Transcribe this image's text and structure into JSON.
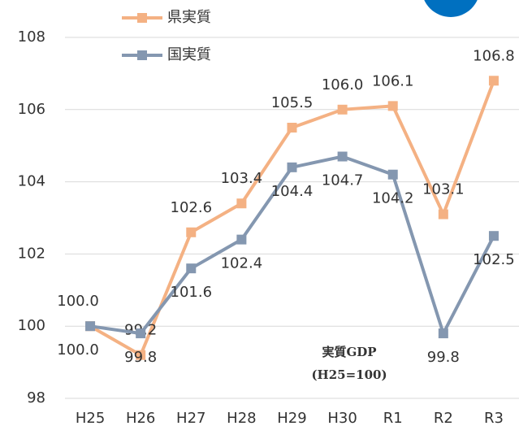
{
  "chart_data": {
    "type": "line",
    "categories": [
      "H25",
      "H26",
      "H27",
      "H28",
      "H29",
      "H30",
      "R1",
      "R2",
      "R3"
    ],
    "series": [
      {
        "name": "県実質",
        "color": "#f4b183",
        "values": [
          100,
          99.2,
          102.6,
          103.4,
          105.5,
          106,
          106.1,
          103.1,
          106.8
        ],
        "value_labels": [
          "100.0",
          "99.2",
          "102.6",
          "103.4",
          "105.5",
          "106.0",
          "106.1",
          "103.1",
          "106.8"
        ]
      },
      {
        "name": "国実質",
        "color": "#8497b0",
        "values": [
          100,
          99.8,
          101.6,
          102.4,
          104.4,
          104.7,
          104.2,
          99.8,
          102.5
        ],
        "value_labels": [
          "100.0",
          "99.8",
          "101.6",
          "102.4",
          "104.4",
          "104.7",
          "104.2",
          "99.8",
          "102.5"
        ]
      }
    ],
    "annotations": [
      "実質GDP",
      "(H25=100)"
    ],
    "ylim": [
      98,
      108
    ],
    "yticks": [
      98,
      100,
      102,
      104,
      106,
      108
    ],
    "grid": true
  }
}
